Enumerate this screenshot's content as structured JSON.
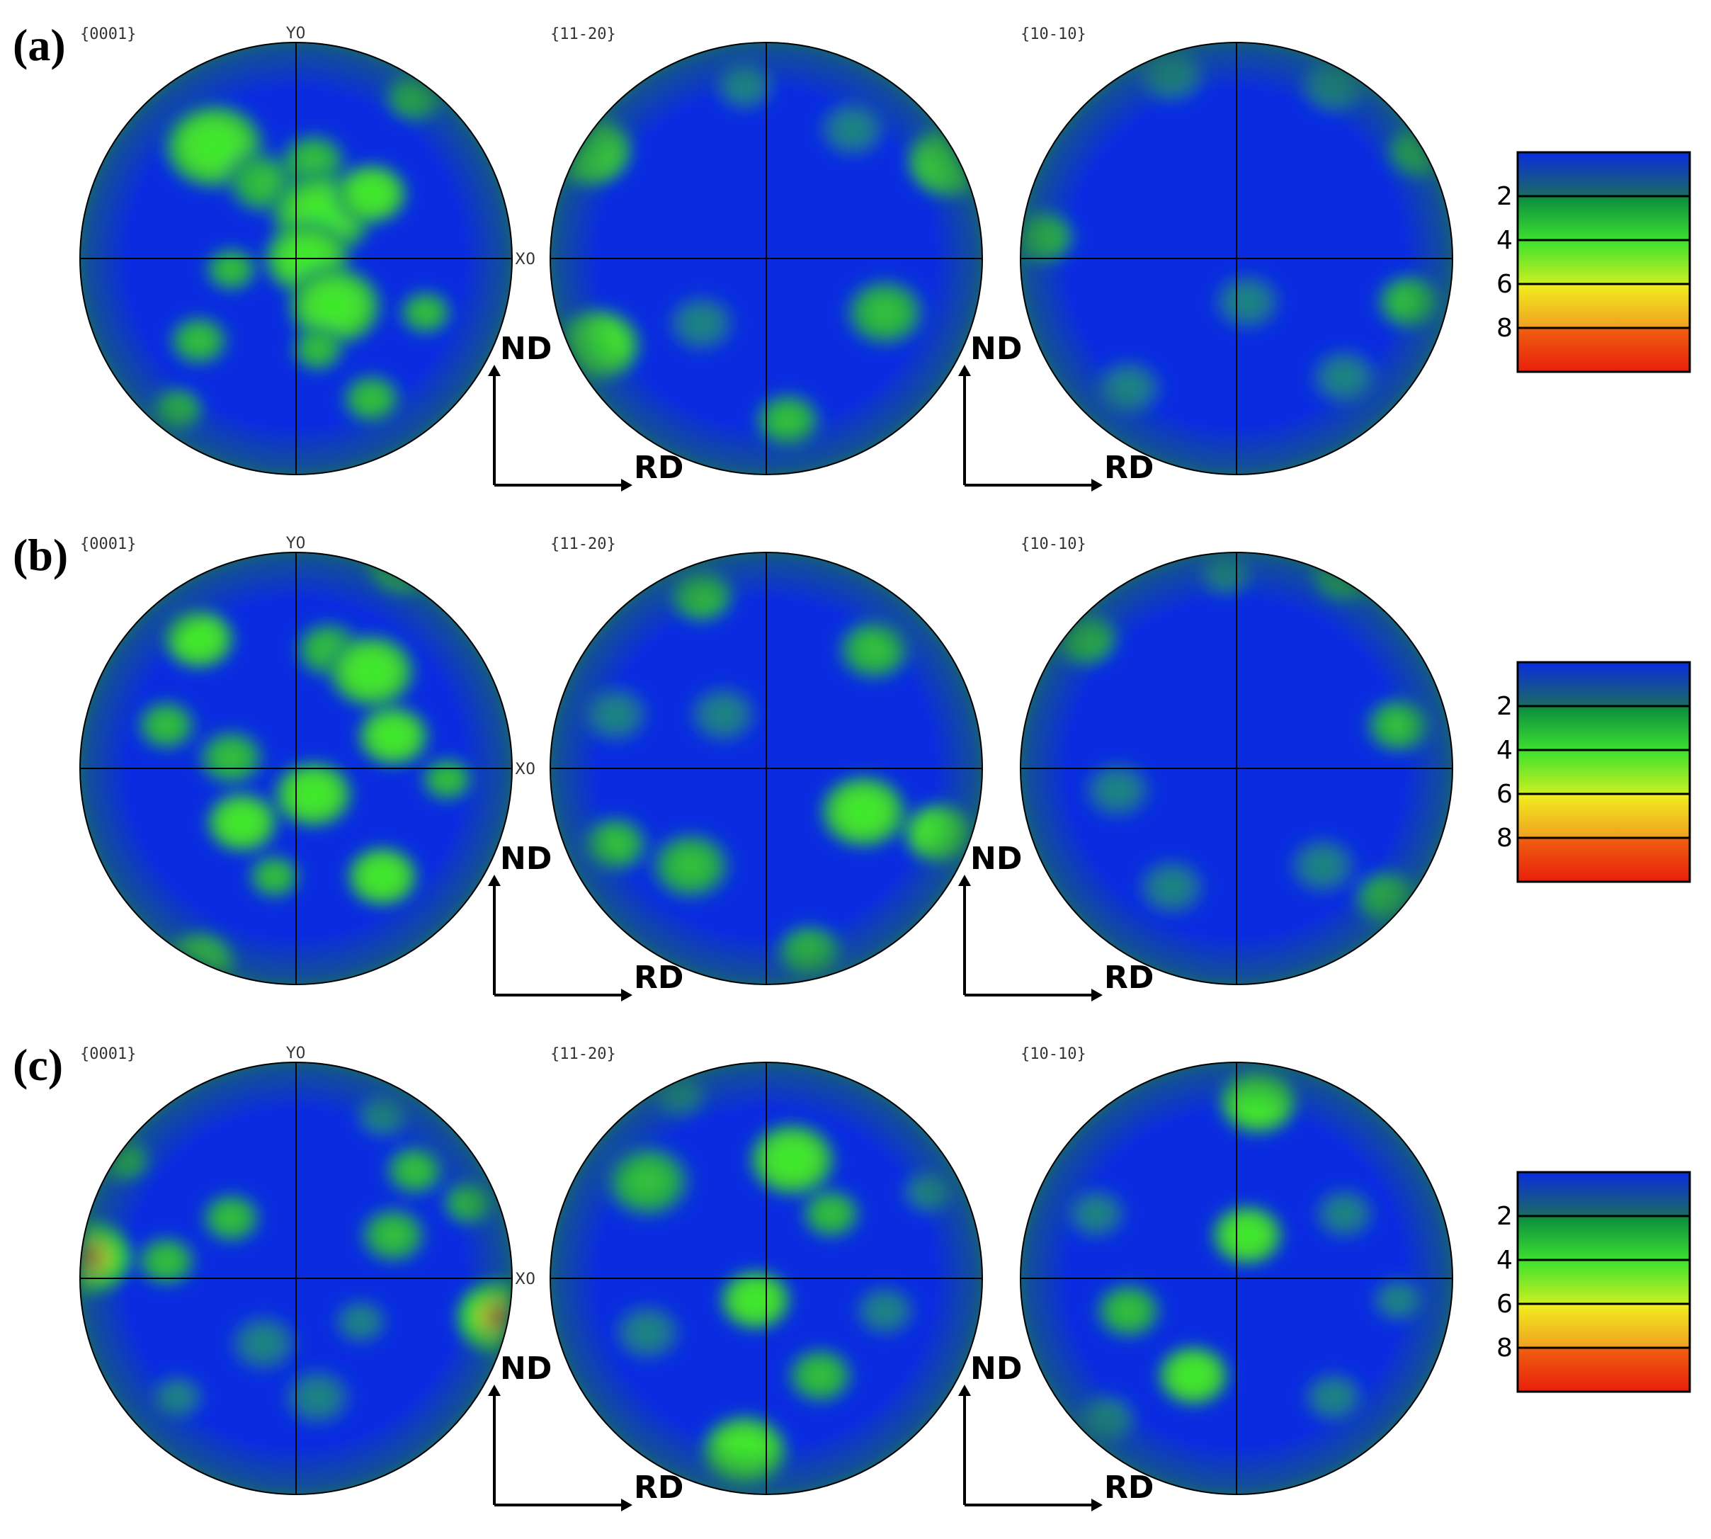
{
  "colors": {
    "background": "#0a2ce0",
    "low": "#1a55d8",
    "mid": "#22a848",
    "high": "#35ee2a",
    "peak": "#f0f020",
    "max": "#e8300c",
    "rim": "#1a6a60"
  },
  "scale": {
    "labels": [
      "2",
      "4",
      "6",
      "8"
    ]
  },
  "axes": {
    "y": "Y0",
    "x": "X0"
  },
  "directions": {
    "nd": "ND",
    "rd": "RD"
  },
  "rows": [
    {
      "label": "(a)",
      "figures": [
        {
          "pole": "{0001}",
          "show_axes": true,
          "spots": [
            [
              -0.38,
              -0.52,
              0.14,
              0.7
            ],
            [
              -0.15,
              -0.35,
              0.11,
              0.55
            ],
            [
              0.08,
              -0.45,
              0.1,
              0.5
            ],
            [
              0.12,
              -0.2,
              0.14,
              0.75
            ],
            [
              0.35,
              -0.3,
              0.1,
              0.6
            ],
            [
              0.05,
              0.0,
              0.12,
              0.7
            ],
            [
              0.18,
              0.22,
              0.13,
              0.7
            ],
            [
              0.1,
              0.42,
              0.08,
              0.45
            ],
            [
              -0.3,
              0.05,
              0.08,
              0.4
            ],
            [
              -0.45,
              0.38,
              0.09,
              0.4
            ],
            [
              0.55,
              -0.75,
              0.09,
              0.45
            ],
            [
              0.6,
              0.25,
              0.08,
              0.45
            ],
            [
              -0.55,
              0.7,
              0.08,
              0.45
            ],
            [
              0.35,
              0.65,
              0.09,
              0.4
            ]
          ]
        },
        {
          "pole": "{11-20}",
          "show_axes": false,
          "spots": [
            [
              -0.82,
              -0.5,
              0.12,
              0.6
            ],
            [
              0.85,
              -0.45,
              0.12,
              0.6
            ],
            [
              -0.78,
              0.4,
              0.12,
              0.6
            ],
            [
              0.55,
              0.25,
              0.12,
              0.45
            ],
            [
              -0.3,
              0.3,
              0.1,
              0.35
            ],
            [
              0.1,
              0.75,
              0.1,
              0.45
            ],
            [
              -0.1,
              -0.8,
              0.09,
              0.35
            ],
            [
              0.4,
              -0.6,
              0.1,
              0.35
            ]
          ]
        },
        {
          "pole": "{10-10}",
          "show_axes": false,
          "spots": [
            [
              -0.9,
              -0.1,
              0.1,
              0.5
            ],
            [
              0.85,
              -0.5,
              0.1,
              0.4
            ],
            [
              0.8,
              0.2,
              0.1,
              0.4
            ],
            [
              -0.5,
              0.6,
              0.1,
              0.35
            ],
            [
              0.5,
              0.55,
              0.1,
              0.35
            ],
            [
              -0.3,
              -0.85,
              0.1,
              0.35
            ],
            [
              0.45,
              -0.8,
              0.1,
              0.35
            ],
            [
              0.05,
              0.2,
              0.1,
              0.25
            ]
          ]
        }
      ]
    },
    {
      "label": "(b)",
      "figures": [
        {
          "pole": "{0001}",
          "show_axes": true,
          "spots": [
            [
              -0.45,
              -0.6,
              0.1,
              0.6
            ],
            [
              0.15,
              -0.55,
              0.1,
              0.5
            ],
            [
              0.35,
              -0.45,
              0.12,
              0.6
            ],
            [
              0.45,
              -0.15,
              0.1,
              0.6
            ],
            [
              -0.6,
              -0.2,
              0.09,
              0.5
            ],
            [
              -0.3,
              -0.05,
              0.1,
              0.5
            ],
            [
              -0.25,
              0.25,
              0.1,
              0.65
            ],
            [
              0.08,
              0.12,
              0.11,
              0.7
            ],
            [
              0.4,
              0.5,
              0.1,
              0.6
            ],
            [
              -0.45,
              0.9,
              0.1,
              0.75
            ],
            [
              0.5,
              -0.95,
              0.1,
              0.6
            ],
            [
              0.7,
              0.05,
              0.08,
              0.45
            ],
            [
              -0.1,
              0.5,
              0.08,
              0.4
            ]
          ]
        },
        {
          "pole": "{11-20}",
          "show_axes": false,
          "spots": [
            [
              -0.3,
              -0.8,
              0.1,
              0.4
            ],
            [
              0.5,
              -0.55,
              0.11,
              0.55
            ],
            [
              -0.7,
              0.35,
              0.1,
              0.45
            ],
            [
              -0.35,
              0.45,
              0.12,
              0.55
            ],
            [
              0.45,
              0.2,
              0.12,
              0.6
            ],
            [
              0.8,
              0.3,
              0.1,
              0.6
            ],
            [
              -0.7,
              -0.25,
              0.1,
              0.35
            ],
            [
              0.2,
              0.85,
              0.1,
              0.4
            ],
            [
              -0.2,
              -0.25,
              0.1,
              0.3
            ]
          ]
        },
        {
          "pole": "{10-10}",
          "show_axes": false,
          "spots": [
            [
              -0.7,
              -0.6,
              0.1,
              0.45
            ],
            [
              0.5,
              -0.9,
              0.1,
              0.45
            ],
            [
              0.75,
              -0.2,
              0.1,
              0.45
            ],
            [
              -0.55,
              0.1,
              0.1,
              0.3
            ],
            [
              0.4,
              0.45,
              0.1,
              0.35
            ],
            [
              0.7,
              0.6,
              0.1,
              0.45
            ],
            [
              -0.3,
              0.55,
              0.1,
              0.3
            ],
            [
              -0.05,
              -0.9,
              0.08,
              0.35
            ]
          ]
        }
      ]
    },
    {
      "label": "(c)",
      "figures": [
        {
          "pole": "{0001}",
          "show_axes": true,
          "spots": [
            [
              -0.97,
              -0.1,
              0.12,
              1.0
            ],
            [
              0.95,
              0.18,
              0.12,
              1.0
            ],
            [
              -0.3,
              -0.28,
              0.09,
              0.55
            ],
            [
              -0.6,
              -0.08,
              0.09,
              0.45
            ],
            [
              0.45,
              -0.2,
              0.1,
              0.45
            ],
            [
              0.55,
              -0.5,
              0.09,
              0.4
            ],
            [
              0.4,
              -0.75,
              0.08,
              0.35
            ],
            [
              -0.15,
              0.3,
              0.1,
              0.35
            ],
            [
              0.1,
              0.55,
              0.1,
              0.35
            ],
            [
              -0.55,
              0.55,
              0.08,
              0.35
            ],
            [
              -0.8,
              -0.55,
              0.08,
              0.4
            ],
            [
              0.8,
              -0.35,
              0.08,
              0.4
            ],
            [
              0.3,
              0.2,
              0.08,
              0.3
            ]
          ]
        },
        {
          "pole": "{11-20}",
          "show_axes": false,
          "spots": [
            [
              -0.55,
              -0.45,
              0.13,
              0.55
            ],
            [
              0.12,
              -0.55,
              0.12,
              0.6
            ],
            [
              0.3,
              -0.3,
              0.09,
              0.4
            ],
            [
              -0.05,
              0.1,
              0.1,
              0.6
            ],
            [
              -0.1,
              0.8,
              0.12,
              0.65
            ],
            [
              0.25,
              0.45,
              0.1,
              0.4
            ],
            [
              -0.55,
              0.25,
              0.1,
              0.35
            ],
            [
              0.55,
              0.15,
              0.09,
              0.3
            ],
            [
              -0.4,
              -0.85,
              0.08,
              0.3
            ],
            [
              0.75,
              -0.4,
              0.08,
              0.3
            ]
          ]
        },
        {
          "pole": "{10-10}",
          "show_axes": false,
          "spots": [
            [
              0.1,
              -0.82,
              0.11,
              0.6
            ],
            [
              0.05,
              -0.2,
              0.1,
              0.6
            ],
            [
              -0.2,
              0.45,
              0.1,
              0.65
            ],
            [
              -0.5,
              0.15,
              0.1,
              0.4
            ],
            [
              0.5,
              -0.3,
              0.09,
              0.35
            ],
            [
              -0.65,
              -0.3,
              0.09,
              0.3
            ],
            [
              0.45,
              0.55,
              0.09,
              0.35
            ],
            [
              -0.6,
              0.65,
              0.09,
              0.35
            ],
            [
              0.75,
              0.1,
              0.08,
              0.3
            ]
          ]
        }
      ]
    }
  ]
}
